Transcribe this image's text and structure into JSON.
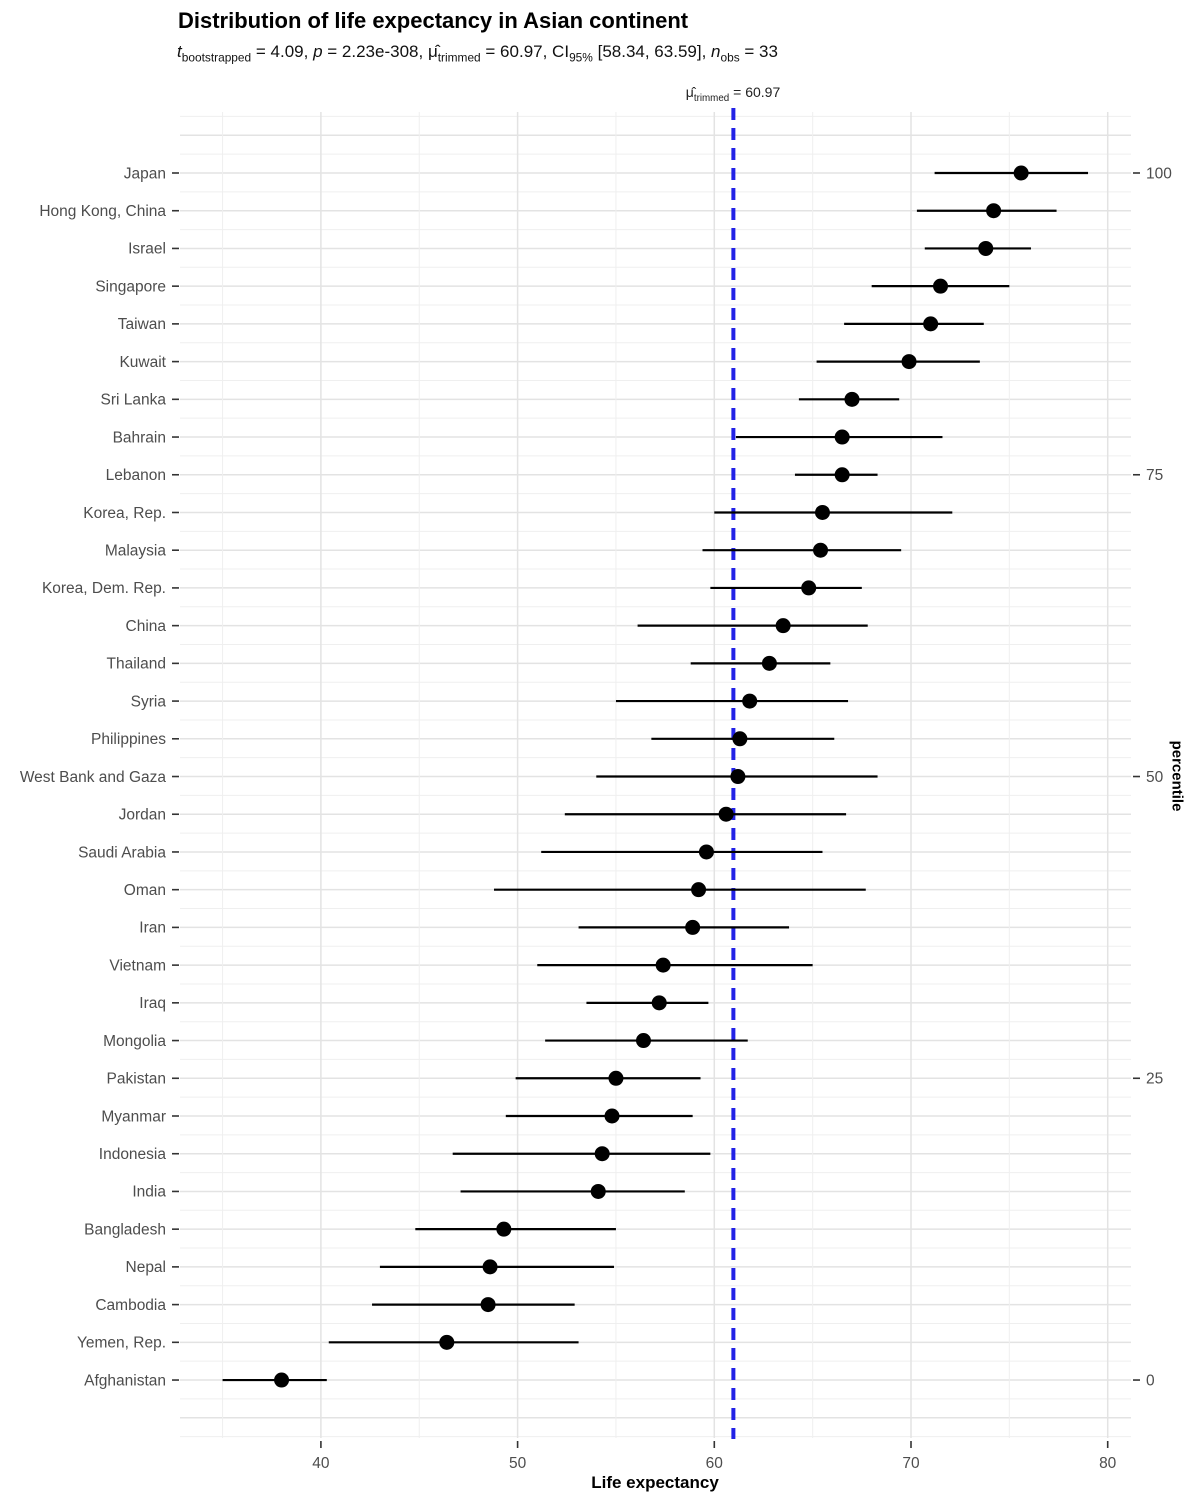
{
  "title": "Distribution of life expectancy in Asian continent",
  "subtitle_segments": [
    {
      "t": "t",
      "i": true
    },
    {
      "t": "bootstrapped",
      "sub": true
    },
    {
      "t": " = 4.09, "
    },
    {
      "t": "p",
      "i": true
    },
    {
      "t": " = 2.23e-308, "
    },
    {
      "t": "μ̂"
    },
    {
      "t": "trimmed",
      "sub": true
    },
    {
      "t": " = 60.97, CI"
    },
    {
      "t": "95%",
      "sub": true
    },
    {
      "t": " [58.34, 63.59], "
    },
    {
      "t": "n",
      "i": true
    },
    {
      "t": "obs",
      "sub": true
    },
    {
      "t": " = 33"
    }
  ],
  "ref_line_label_segments": [
    {
      "t": "μ̂"
    },
    {
      "t": "trimmed",
      "sub": true
    },
    {
      "t": " = 60.97"
    }
  ],
  "chart_data": {
    "type": "scatter",
    "subtype": "dot-plot-with-intervals",
    "title": "Distribution of life expectancy in Asian continent",
    "xlabel": "Life expectancy",
    "right_axis_label": "percentile",
    "xlim": [
      32.8,
      81.2
    ],
    "x_major_ticks": [
      40,
      50,
      60,
      70,
      80
    ],
    "x_minor_gridlines": [
      35,
      45,
      55,
      65,
      75
    ],
    "grid": true,
    "ref_line": {
      "value": 60.97,
      "style": "dashed",
      "color": "#2222e6"
    },
    "right_axis_ticks": [
      {
        "label": "100",
        "row_index": 0
      },
      {
        "label": "75",
        "row_index": 8
      },
      {
        "label": "50",
        "row_index": 16
      },
      {
        "label": "25",
        "row_index": 24
      },
      {
        "label": "0",
        "row_index": 32
      }
    ],
    "points": [
      {
        "country": "Japan",
        "value": 75.6,
        "lo": 71.2,
        "hi": 79.0
      },
      {
        "country": "Hong Kong, China",
        "value": 74.2,
        "lo": 70.3,
        "hi": 77.4
      },
      {
        "country": "Israel",
        "value": 73.8,
        "lo": 70.7,
        "hi": 76.1
      },
      {
        "country": "Singapore",
        "value": 71.5,
        "lo": 68.0,
        "hi": 75.0
      },
      {
        "country": "Taiwan",
        "value": 71.0,
        "lo": 66.6,
        "hi": 73.7
      },
      {
        "country": "Kuwait",
        "value": 69.9,
        "lo": 65.2,
        "hi": 73.5
      },
      {
        "country": "Sri Lanka",
        "value": 67.0,
        "lo": 64.3,
        "hi": 69.4
      },
      {
        "country": "Bahrain",
        "value": 66.5,
        "lo": 61.1,
        "hi": 71.6
      },
      {
        "country": "Lebanon",
        "value": 66.5,
        "lo": 64.1,
        "hi": 68.3
      },
      {
        "country": "Korea, Rep.",
        "value": 65.5,
        "lo": 60.0,
        "hi": 72.1
      },
      {
        "country": "Malaysia",
        "value": 65.4,
        "lo": 59.4,
        "hi": 69.5
      },
      {
        "country": "Korea, Dem. Rep.",
        "value": 64.8,
        "lo": 59.8,
        "hi": 67.5
      },
      {
        "country": "China",
        "value": 63.5,
        "lo": 56.1,
        "hi": 67.8
      },
      {
        "country": "Thailand",
        "value": 62.8,
        "lo": 58.8,
        "hi": 65.9
      },
      {
        "country": "Syria",
        "value": 61.8,
        "lo": 55.0,
        "hi": 66.8
      },
      {
        "country": "Philippines",
        "value": 61.3,
        "lo": 56.8,
        "hi": 66.1
      },
      {
        "country": "West Bank and Gaza",
        "value": 61.2,
        "lo": 54.0,
        "hi": 68.3
      },
      {
        "country": "Jordan",
        "value": 60.6,
        "lo": 52.4,
        "hi": 66.7
      },
      {
        "country": "Saudi Arabia",
        "value": 59.6,
        "lo": 51.2,
        "hi": 65.5
      },
      {
        "country": "Oman",
        "value": 59.2,
        "lo": 48.8,
        "hi": 67.7
      },
      {
        "country": "Iran",
        "value": 58.9,
        "lo": 53.1,
        "hi": 63.8
      },
      {
        "country": "Vietnam",
        "value": 57.4,
        "lo": 51.0,
        "hi": 65.0
      },
      {
        "country": "Iraq",
        "value": 57.2,
        "lo": 53.5,
        "hi": 59.7
      },
      {
        "country": "Mongolia",
        "value": 56.4,
        "lo": 51.4,
        "hi": 61.7
      },
      {
        "country": "Pakistan",
        "value": 55.0,
        "lo": 49.9,
        "hi": 59.3
      },
      {
        "country": "Myanmar",
        "value": 54.8,
        "lo": 49.4,
        "hi": 58.9
      },
      {
        "country": "Indonesia",
        "value": 54.3,
        "lo": 46.7,
        "hi": 59.8
      },
      {
        "country": "India",
        "value": 54.1,
        "lo": 47.1,
        "hi": 58.5
      },
      {
        "country": "Bangladesh",
        "value": 49.3,
        "lo": 44.8,
        "hi": 55.0
      },
      {
        "country": "Nepal",
        "value": 48.6,
        "lo": 43.0,
        "hi": 54.9
      },
      {
        "country": "Cambodia",
        "value": 48.5,
        "lo": 42.6,
        "hi": 52.9
      },
      {
        "country": "Yemen, Rep.",
        "value": 46.4,
        "lo": 40.4,
        "hi": 53.1
      },
      {
        "country": "Afghanistan",
        "value": 38.0,
        "lo": 35.0,
        "hi": 40.3
      }
    ]
  },
  "colors": {
    "point": "#000000",
    "interval": "#000000",
    "ref_line": "#2222e6",
    "grid_major": "#e3e3e3",
    "grid_minor": "#efefef",
    "tick": "#333333",
    "axis_text": "#4d4d4d",
    "background": "#ffffff"
  }
}
